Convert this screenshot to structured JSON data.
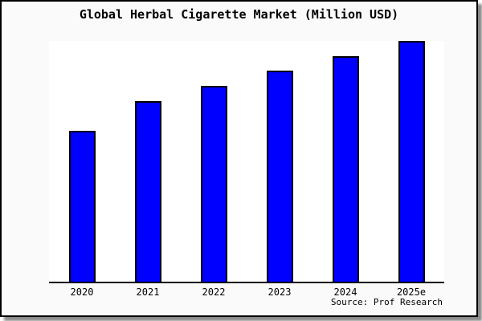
{
  "title": "Global Herbal Cigarette Market (Million USD)",
  "source": "Source: Prof Research",
  "colors": {
    "bar_fill": "#0000ff",
    "bar_outline": "#000000",
    "canvas_background": "#fafafa",
    "plot_background": "#ffffff",
    "axis": "#000000",
    "frame_border": "#000000",
    "shadow": "#8a8a8a"
  },
  "chart_data": {
    "type": "bar",
    "title": "Global Herbal Cigarette Market (Million USD)",
    "categories": [
      "2020",
      "2021",
      "2022",
      "2023",
      "2024",
      "2025e"
    ],
    "values": [
      189,
      226,
      245,
      264,
      282,
      301
    ],
    "xlabel": "",
    "ylabel": "",
    "ylim": [
      0,
      301
    ],
    "y_axis_visible": false,
    "grid": false,
    "legend": false,
    "note": "Y-axis has no tick labels; values are relative estimates proportional to bar heights."
  }
}
